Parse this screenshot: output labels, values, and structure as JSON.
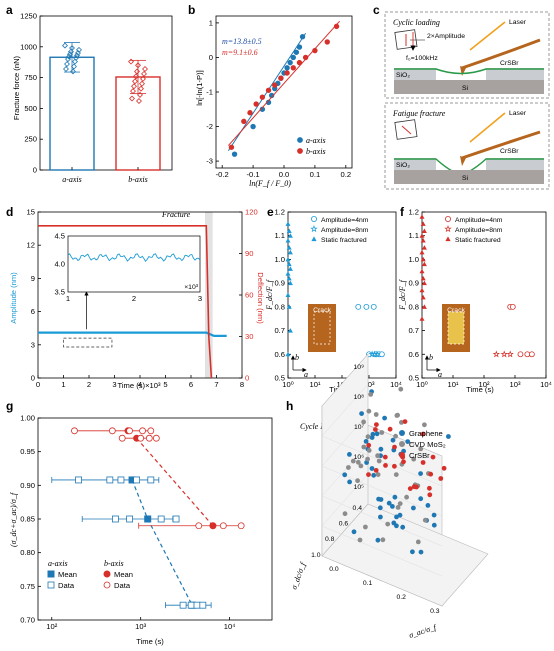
{
  "panel_labels": [
    "a",
    "b",
    "c",
    "d",
    "e",
    "f",
    "g",
    "h"
  ],
  "colors": {
    "blue": "#1f78b4",
    "red": "#d7302b",
    "cyan": "#1a9bd7",
    "gray": "#8c8c8c",
    "orange": "#f2a11d",
    "brown": "#b5651d"
  },
  "chart_data": [
    {
      "panel": "a",
      "type": "bar",
      "categories": [
        "a-axis",
        "b-axis"
      ],
      "values": [
        915,
        755
      ],
      "errors": [
        120,
        135
      ],
      "ylabel": "Fracture force (nN)",
      "ylim": [
        0,
        1250
      ],
      "yticks": [
        "0",
        "250",
        "500",
        "750",
        "1000",
        "1250"
      ],
      "series_colors": [
        "#1f78b4",
        "#d7302b"
      ],
      "points": {
        "a-axis": [
          1010,
          990,
          975,
          960,
          950,
          940,
          930,
          920,
          910,
          900,
          880,
          860,
          840,
          820,
          800
        ],
        "b-axis": [
          880,
          850,
          820,
          800,
          780,
          760,
          740,
          720,
          700,
          680,
          660,
          640,
          610,
          580,
          560
        ]
      }
    },
    {
      "panel": "b",
      "type": "scatter",
      "xlabel": "ln(F_f / F_0)",
      "ylabel": "ln[-ln(1-P)]",
      "xlim": [
        -0.22,
        0.22
      ],
      "ylim": [
        -3.2,
        1.2
      ],
      "xticks": [
        "-0.2",
        "-0.1",
        "0.0",
        "0.1",
        "0.2"
      ],
      "yticks": [
        "-3",
        "-2",
        "-1",
        "0",
        "1"
      ],
      "annotations": [
        "m=13.8±0.5",
        "m=9.1±0.6"
      ],
      "series": [
        {
          "name": "a-axis",
          "color": "#1f78b4",
          "x": [
            -0.16,
            -0.1,
            -0.07,
            -0.05,
            -0.04,
            -0.03,
            -0.02,
            -0.01,
            0.0,
            0.01,
            0.02,
            0.03,
            0.04,
            0.05,
            0.06
          ],
          "y": [
            -2.8,
            -2.0,
            -1.5,
            -1.3,
            -1.1,
            -0.9,
            -0.75,
            -0.6,
            -0.45,
            -0.3,
            -0.15,
            0.0,
            0.15,
            0.3,
            0.6
          ],
          "fit": [
            [
              -0.18,
              -2.7
            ],
            [
              0.07,
              0.7
            ]
          ]
        },
        {
          "name": "b-axis",
          "color": "#d7302b",
          "x": [
            -0.17,
            -0.13,
            -0.11,
            -0.09,
            -0.07,
            -0.05,
            -0.03,
            -0.01,
            0.01,
            0.03,
            0.05,
            0.07,
            0.1,
            0.14,
            0.17
          ],
          "y": [
            -2.6,
            -1.85,
            -1.6,
            -1.35,
            -1.15,
            -0.95,
            -0.8,
            -0.6,
            -0.45,
            -0.3,
            -0.15,
            0.0,
            0.2,
            0.45,
            0.9
          ],
          "fit": [
            [
              -0.18,
              -2.55
            ],
            [
              0.18,
              1.05
            ]
          ]
        }
      ]
    },
    {
      "panel": "d",
      "type": "line",
      "xlabel": "Time (s)×10³",
      "ylabel": "Amplitude (nm)",
      "ylabel_right": "Deflection (nm)",
      "xlim": [
        0,
        8
      ],
      "ylim": [
        0,
        15
      ],
      "ylim_right": [
        0,
        120
      ],
      "xticks": [
        "0",
        "1",
        "2",
        "3",
        "4",
        "5",
        "6",
        "7",
        "8"
      ],
      "yticks": [
        "0",
        "3",
        "6",
        "9",
        "12",
        "15"
      ],
      "yticks_right": [
        "0",
        "30",
        "60",
        "90",
        "120"
      ],
      "annotation": "Fracture",
      "fracture_span": [
        6.55,
        6.85
      ],
      "series": [
        {
          "name": "Amplitude",
          "color": "#1a9bd7",
          "axis": "left",
          "x": [
            0,
            6.6,
            6.9,
            7.4
          ],
          "y": [
            4.1,
            4.1,
            3.8,
            3.8
          ]
        },
        {
          "name": "Deflection",
          "color": "#d7302b",
          "axis": "right",
          "x": [
            0,
            6.6,
            6.7,
            6.8
          ],
          "y": [
            110,
            110,
            30,
            0
          ]
        }
      ],
      "inset": {
        "xlim": [
          1,
          3
        ],
        "ylim": [
          3.5,
          4.5
        ],
        "xticks": [
          "1",
          "2",
          "3"
        ],
        "yticks": [
          "3.5",
          "4.0",
          "4.5"
        ],
        "xunit": "×10³"
      }
    },
    {
      "panel": "e",
      "type": "scatter",
      "xlabel": "Time (s)",
      "ylabel": "F_dc/F_f",
      "log_x": true,
      "xlim": [
        1,
        10000
      ],
      "ylim": [
        0.5,
        1.2
      ],
      "xticks": [
        "10⁰",
        "10¹",
        "10²",
        "10³",
        "10⁴"
      ],
      "yticks": [
        "0.5",
        "0.6",
        "0.7",
        "0.8",
        "0.9",
        "1.0",
        "1.1",
        "1.2"
      ],
      "legend": [
        "Amplitude=4nm",
        "Amplitude=8nm",
        "Static fractured"
      ],
      "series": [
        {
          "name": "Amplitude=4nm",
          "color": "#1a9bd7",
          "marker": "circle-open",
          "x": [
            400,
            800,
            1500,
            1000,
            1800,
            2400,
            3000
          ],
          "y": [
            0.8,
            0.8,
            0.8,
            0.6,
            0.6,
            0.6,
            0.6
          ]
        },
        {
          "name": "Amplitude=8nm",
          "color": "#1a9bd7",
          "marker": "star-open",
          "x": [
            1300,
            1600,
            2000
          ],
          "y": [
            0.6,
            0.6,
            0.6
          ]
        },
        {
          "name": "Static fractured",
          "color": "#1a9bd7",
          "marker": "triangle",
          "x": [
            1,
            1,
            1,
            1,
            1,
            1,
            1,
            1,
            1,
            1,
            1,
            1,
            1,
            1,
            1,
            1
          ],
          "y": [
            1.15,
            1.12,
            1.1,
            1.08,
            1.05,
            1.03,
            1.0,
            0.98,
            0.96,
            0.94,
            0.92,
            0.9,
            0.85,
            0.8,
            0.7,
            0.6
          ]
        }
      ]
    },
    {
      "panel": "f",
      "type": "scatter",
      "xlabel": "Time (s)",
      "ylabel": "F_dc/F_f",
      "log_x": true,
      "xlim": [
        1,
        10000
      ],
      "ylim": [
        0.5,
        1.2
      ],
      "xticks": [
        "10⁰",
        "10¹",
        "10²",
        "10³",
        "10⁴"
      ],
      "yticks": [
        "0.5",
        "0.6",
        "0.7",
        "0.8",
        "0.9",
        "1.0",
        "1.1",
        "1.2"
      ],
      "legend": [
        "Amplitude=4nm",
        "Amplitude=8nm",
        "Static fractured"
      ],
      "series": [
        {
          "name": "Amplitude=4nm",
          "color": "#d7302b",
          "marker": "circle-open",
          "x": [
            700,
            850,
            1500,
            2500,
            3500
          ],
          "y": [
            0.8,
            0.8,
            0.6,
            0.6,
            0.6
          ]
        },
        {
          "name": "Amplitude=8nm",
          "color": "#d7302b",
          "marker": "star-open",
          "x": [
            250,
            450,
            700
          ],
          "y": [
            0.6,
            0.6,
            0.6
          ]
        },
        {
          "name": "Static fractured",
          "color": "#d7302b",
          "marker": "triangle",
          "x": [
            1,
            1,
            1,
            1,
            1,
            1,
            1,
            1,
            1,
            1,
            1,
            1,
            1,
            1,
            1,
            1
          ],
          "y": [
            1.18,
            1.15,
            1.12,
            1.1,
            1.08,
            1.05,
            1.03,
            1.0,
            0.98,
            0.95,
            0.92,
            0.9,
            0.87,
            0.84,
            0.8,
            0.75
          ]
        }
      ]
    },
    {
      "panel": "g",
      "type": "scatter",
      "xlabel": "Time (s)",
      "ylabel": "(σ_dc+σ_ac)/σ_f",
      "log_x": true,
      "xlim": [
        70,
        30000
      ],
      "ylim": [
        0.7,
        1.0
      ],
      "xticks": [
        "10²",
        "10³",
        "10⁴"
      ],
      "yticks": [
        "0.70",
        "0.75",
        "0.80",
        "0.85",
        "0.90",
        "0.95",
        "1.00"
      ],
      "legend_titles": [
        "a-axis",
        "b-axis"
      ],
      "legend": [
        "Mean",
        "Data",
        "Mean",
        "Data"
      ],
      "series": [
        {
          "name": "a-axis Mean",
          "color": "#1f78b4",
          "marker": "square",
          "x": [
            800,
            1200,
            3800
          ],
          "y": [
            0.908,
            0.85,
            0.722
          ],
          "xerr": [
            [
              100,
              1600
            ],
            [
              220,
              2300
            ],
            [
              1900,
              6200
            ]
          ]
        },
        {
          "name": "a-axis Data",
          "color": "#1f78b4",
          "marker": "square-open",
          "x": [
            200,
            450,
            600,
            900,
            1300,
            520,
            750,
            1700,
            2500,
            3000,
            3700,
            4300,
            5000
          ],
          "y": [
            0.908,
            0.908,
            0.908,
            0.908,
            0.908,
            0.85,
            0.85,
            0.85,
            0.85,
            0.722,
            0.722,
            0.722,
            0.722
          ]
        },
        {
          "name": "b-axis Mean",
          "color": "#d7302b",
          "marker": "circle",
          "x": [
            720,
            900,
            6500
          ],
          "y": [
            0.981,
            0.97,
            0.84
          ],
          "xerr": [
            [
              180,
              1300
            ],
            [
              600,
              1300
            ],
            [
              950,
              14000
            ]
          ]
        },
        {
          "name": "b-axis Data",
          "color": "#d7302b",
          "marker": "circle-open",
          "x": [
            180,
            480,
            750,
            1050,
            1300,
            620,
            1000,
            1250,
            1500,
            4500,
            8500,
            13500
          ],
          "y": [
            0.981,
            0.981,
            0.981,
            0.981,
            0.981,
            0.97,
            0.97,
            0.97,
            0.97,
            0.84,
            0.84,
            0.84
          ]
        }
      ],
      "dashed_trends": [
        {
          "color": "#1f78b4",
          "x": [
            800,
            1200,
            3800
          ],
          "y": [
            0.908,
            0.85,
            0.722
          ]
        },
        {
          "color": "#d7302b",
          "x": [
            900,
            6500
          ],
          "y": [
            0.97,
            0.84
          ]
        }
      ]
    },
    {
      "panel": "h",
      "type": "scatter",
      "zlabel": "Cycle N",
      "xlabel": "σ_ac/σ_f",
      "ylabel": "σ_dc/σ_f",
      "zticks": [
        "10⁵",
        "10⁶",
        "10⁷",
        "10⁸",
        "10⁹"
      ],
      "xticks": [
        "0.0",
        "0.1",
        "0.2",
        "0.3"
      ],
      "yticks": [
        "0.4",
        "0.6",
        "0.8",
        "1.0"
      ],
      "legend": [
        "Graphene",
        "CVD MoS₂",
        "CrSBr"
      ],
      "series": [
        {
          "name": "Graphene",
          "color": "#1f78b4",
          "count": 45
        },
        {
          "name": "CVD MoS₂",
          "color": "#8c8c8c",
          "count": 40
        },
        {
          "name": "CrSBr",
          "color": "#d7302b",
          "count": 24
        }
      ]
    }
  ],
  "schematic": {
    "top": {
      "title": "Cyclic loading",
      "amplitude": "2×Amplitude",
      "frequency": "f₀=100kHz",
      "laser": "Laser",
      "substrate": "SiO₂",
      "base": "Si",
      "material": "CrSBr"
    },
    "bottom": {
      "title": "Fatigue fracture",
      "laser": "Laser",
      "substrate": "SiO₂",
      "base": "Si",
      "material": "CrSBr"
    }
  },
  "inset_labels": {
    "crack": "Crack",
    "axis_a": "a",
    "axis_b": "b"
  }
}
